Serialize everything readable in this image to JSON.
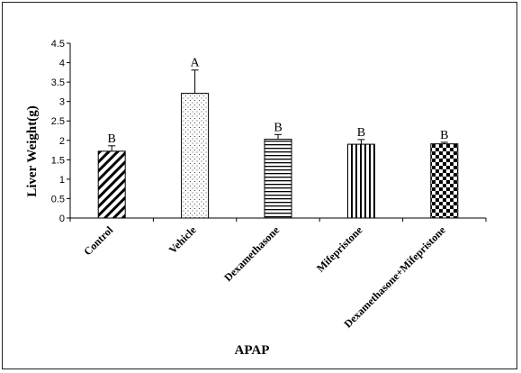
{
  "chart_data": {
    "type": "bar",
    "ylabel": "Liver Weight(g)",
    "xlabel": "APAP",
    "ylim": [
      0,
      4.5
    ],
    "yticks": [
      "0",
      "0.5",
      "1",
      "1.5",
      "2",
      "2.5",
      "3",
      "3.5",
      "4",
      "4.5"
    ],
    "categories": [
      "Control",
      "Vehicle",
      "Dexamethasone",
      "Mifepristone",
      "Dexamethasone+Mifepristone"
    ],
    "values": [
      1.72,
      3.21,
      2.03,
      1.9,
      1.91
    ],
    "errors": [
      0.14,
      0.6,
      0.12,
      0.12,
      0.04
    ],
    "significance_labels": [
      "B",
      "A",
      "B",
      "B",
      "B"
    ],
    "patterns": [
      "diagonal-stripes",
      "dots",
      "horizontal-stripes",
      "vertical-stripes",
      "checkerboard"
    ],
    "grid": false,
    "legend": "none"
  }
}
